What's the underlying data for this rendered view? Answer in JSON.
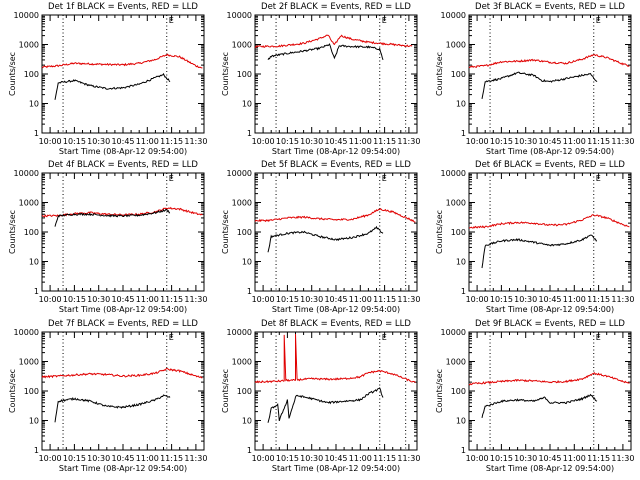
{
  "chart_data": [
    {
      "type": "line",
      "title": "Det 1f BLACK = Events, RED = LLD",
      "xlabel": "Start Time (08-Apr-12 09:54:00)",
      "ylabel": "Counts/sec",
      "xtick_labels": [
        "10:00",
        "10:15",
        "10:30",
        "10:45",
        "11:00",
        "11:15",
        "11:30"
      ],
      "ytick_labels": [
        "1",
        "10",
        "100",
        "1000",
        "10000"
      ],
      "ylim": [
        1,
        10000
      ],
      "yscale": "log",
      "time_range": [
        "09:55",
        "11:35"
      ],
      "markers": [
        {
          "time": "10:08",
          "label": ""
        },
        {
          "time": "11:12",
          "label": "E"
        }
      ],
      "series": [
        {
          "name": "RED = LLD",
          "color": "#e00000",
          "x": [
            "09:55",
            "10:05",
            "10:15",
            "10:25",
            "10:35",
            "10:45",
            "10:55",
            "11:05",
            "11:12",
            "11:20",
            "11:30",
            "11:34"
          ],
          "values": [
            170,
            190,
            230,
            220,
            210,
            205,
            230,
            310,
            450,
            380,
            190,
            160
          ]
        },
        {
          "name": "BLACK = Events",
          "color": "#000000",
          "x": [
            "10:03",
            "10:05",
            "10:15",
            "10:25",
            "10:35",
            "10:45",
            "10:55",
            "11:05",
            "11:10",
            "11:14"
          ],
          "values": [
            13,
            50,
            60,
            40,
            32,
            34,
            45,
            75,
            95,
            55
          ]
        }
      ]
    },
    {
      "type": "line",
      "title": "Det 2f BLACK = Events, RED = LLD",
      "xlabel": "Start Time (08-Apr-12 09:54:00)",
      "ylabel": "Counts/sec",
      "xtick_labels": [
        "10:00",
        "10:15",
        "10:30",
        "10:45",
        "11:00",
        "11:15",
        "11:30"
      ],
      "ytick_labels": [
        "1",
        "10",
        "100",
        "1000",
        "10000"
      ],
      "ylim": [
        1,
        10000
      ],
      "yscale": "log",
      "time_range": [
        "09:55",
        "11:35"
      ],
      "markers": [
        {
          "time": "10:08",
          "label": ""
        },
        {
          "time": "11:12",
          "label": "E"
        },
        {
          "time": "11:28",
          "label": ""
        }
      ],
      "series": [
        {
          "name": "RED = LLD",
          "color": "#e00000",
          "x": [
            "09:55",
            "10:10",
            "10:25",
            "10:35",
            "10:40",
            "10:44",
            "10:48",
            "10:55",
            "11:05",
            "11:20",
            "11:32"
          ],
          "values": [
            850,
            880,
            1100,
            1600,
            2100,
            950,
            2000,
            1500,
            1200,
            1000,
            870
          ]
        },
        {
          "name": "BLACK = Events",
          "color": "#000000",
          "x": [
            "10:03",
            "10:05",
            "10:15",
            "10:25",
            "10:35",
            "10:41",
            "10:44",
            "10:47",
            "10:55",
            "11:05",
            "11:12",
            "11:14"
          ],
          "values": [
            300,
            400,
            500,
            600,
            750,
            1000,
            330,
            900,
            850,
            820,
            700,
            300
          ]
        }
      ]
    },
    {
      "type": "line",
      "title": "Det 3f BLACK = Events, RED = LLD",
      "xlabel": "Start Time (08-Apr-12 09:54:00)",
      "ylabel": "Counts/sec",
      "xtick_labels": [
        "10:00",
        "10:15",
        "10:30",
        "10:45",
        "11:00",
        "11:15",
        "11:30"
      ],
      "ytick_labels": [
        "1",
        "10",
        "100",
        "1000",
        "10000"
      ],
      "ylim": [
        1,
        10000
      ],
      "yscale": "log",
      "time_range": [
        "09:55",
        "11:35"
      ],
      "markers": [
        {
          "time": "10:08",
          "label": ""
        },
        {
          "time": "11:12",
          "label": "E"
        }
      ],
      "series": [
        {
          "name": "RED = LLD",
          "color": "#e00000",
          "x": [
            "09:55",
            "10:05",
            "10:15",
            "10:25",
            "10:35",
            "10:45",
            "10:55",
            "11:05",
            "11:12",
            "11:20",
            "11:30",
            "11:34"
          ],
          "values": [
            170,
            190,
            260,
            270,
            300,
            250,
            230,
            320,
            450,
            360,
            220,
            190
          ]
        },
        {
          "name": "BLACK = Events",
          "color": "#000000",
          "x": [
            "10:03",
            "10:05",
            "10:15",
            "10:25",
            "10:35",
            "10:40",
            "10:45",
            "10:55",
            "11:05",
            "11:10",
            "11:14"
          ],
          "values": [
            15,
            55,
            70,
            110,
            90,
            60,
            55,
            70,
            90,
            100,
            55
          ]
        }
      ]
    },
    {
      "type": "line",
      "title": "Det 4f BLACK = Events, RED = LLD",
      "xlabel": "Start Time (08-Apr-12 09:54:00)",
      "ylabel": "Counts/sec",
      "xtick_labels": [
        "10:00",
        "10:15",
        "10:30",
        "10:45",
        "11:00",
        "11:15",
        "11:30"
      ],
      "ytick_labels": [
        "1",
        "10",
        "100",
        "1000",
        "10000"
      ],
      "ylim": [
        1,
        10000
      ],
      "yscale": "log",
      "time_range": [
        "09:55",
        "11:35"
      ],
      "markers": [
        {
          "time": "10:08",
          "label": ""
        },
        {
          "time": "11:12",
          "label": "E"
        }
      ],
      "series": [
        {
          "name": "RED = LLD",
          "color": "#e00000",
          "x": [
            "09:55",
            "10:05",
            "10:15",
            "10:25",
            "10:35",
            "10:45",
            "10:55",
            "11:05",
            "11:12",
            "11:20",
            "11:30",
            "11:34"
          ],
          "values": [
            350,
            360,
            420,
            450,
            400,
            380,
            400,
            480,
            650,
            600,
            420,
            380
          ]
        },
        {
          "name": "BLACK = Events",
          "color": "#000000",
          "x": [
            "10:03",
            "10:05",
            "10:15",
            "10:25",
            "10:35",
            "10:45",
            "10:55",
            "11:05",
            "11:12",
            "11:14"
          ],
          "values": [
            150,
            350,
            400,
            400,
            360,
            350,
            370,
            450,
            560,
            450
          ]
        }
      ]
    },
    {
      "type": "line",
      "title": "Det 5f BLACK = Events, RED = LLD",
      "xlabel": "Start Time (08-Apr-12 09:54:00)",
      "ylabel": "Counts/sec",
      "xtick_labels": [
        "10:00",
        "10:15",
        "10:30",
        "10:45",
        "11:00",
        "11:15",
        "11:30"
      ],
      "ytick_labels": [
        "1",
        "10",
        "100",
        "1000",
        "10000"
      ],
      "ylim": [
        1,
        10000
      ],
      "yscale": "log",
      "time_range": [
        "09:55",
        "11:35"
      ],
      "markers": [
        {
          "time": "10:08",
          "label": ""
        },
        {
          "time": "11:12",
          "label": "E"
        },
        {
          "time": "11:28",
          "label": ""
        }
      ],
      "series": [
        {
          "name": "RED = LLD",
          "color": "#e00000",
          "x": [
            "09:55",
            "10:05",
            "10:15",
            "10:25",
            "10:35",
            "10:45",
            "10:55",
            "11:05",
            "11:12",
            "11:20",
            "11:30",
            "11:34"
          ],
          "values": [
            240,
            250,
            300,
            320,
            280,
            260,
            270,
            380,
            600,
            480,
            280,
            220
          ]
        },
        {
          "name": "BLACK = Events",
          "color": "#000000",
          "x": [
            "10:03",
            "10:05",
            "10:15",
            "10:25",
            "10:35",
            "10:45",
            "10:55",
            "11:05",
            "11:10",
            "11:14"
          ],
          "values": [
            20,
            70,
            90,
            100,
            70,
            55,
            65,
            90,
            140,
            90
          ]
        }
      ]
    },
    {
      "type": "line",
      "title": "Det 6f BLACK = Events, RED = LLD",
      "xlabel": "Start Time (08-Apr-12 09:54:00)",
      "ylabel": "Counts/sec",
      "xtick_labels": [
        "10:00",
        "10:15",
        "10:30",
        "10:45",
        "11:00",
        "11:15",
        "11:30"
      ],
      "ytick_labels": [
        "1",
        "10",
        "100",
        "1000",
        "10000"
      ],
      "ylim": [
        1,
        10000
      ],
      "yscale": "log",
      "time_range": [
        "09:55",
        "11:35"
      ],
      "markers": [
        {
          "time": "10:08",
          "label": ""
        },
        {
          "time": "11:12",
          "label": "E"
        }
      ],
      "series": [
        {
          "name": "RED = LLD",
          "color": "#e00000",
          "x": [
            "09:55",
            "10:05",
            "10:15",
            "10:25",
            "10:35",
            "10:45",
            "10:55",
            "11:05",
            "11:12",
            "11:20",
            "11:30",
            "11:34"
          ],
          "values": [
            140,
            150,
            190,
            210,
            200,
            170,
            180,
            260,
            380,
            300,
            180,
            150
          ]
        },
        {
          "name": "BLACK = Events",
          "color": "#000000",
          "x": [
            "10:03",
            "10:05",
            "10:15",
            "10:25",
            "10:35",
            "10:45",
            "10:55",
            "11:05",
            "11:10",
            "11:14"
          ],
          "values": [
            6,
            35,
            50,
            55,
            45,
            35,
            40,
            55,
            80,
            50
          ]
        }
      ]
    },
    {
      "type": "line",
      "title": "Det 7f BLACK = Events, RED = LLD",
      "xlabel": "Start Time (08-Apr-12 09:54:00)",
      "ylabel": "Counts/sec",
      "xtick_labels": [
        "10:00",
        "10:15",
        "10:30",
        "10:45",
        "11:00",
        "11:15",
        "11:30"
      ],
      "ytick_labels": [
        "1",
        "10",
        "100",
        "1000",
        "10000"
      ],
      "ylim": [
        1,
        10000
      ],
      "yscale": "log",
      "time_range": [
        "09:55",
        "11:35"
      ],
      "markers": [
        {
          "time": "10:08",
          "label": ""
        },
        {
          "time": "11:12",
          "label": "E"
        }
      ],
      "series": [
        {
          "name": "RED = LLD",
          "color": "#e00000",
          "x": [
            "09:55",
            "10:05",
            "10:15",
            "10:25",
            "10:35",
            "10:45",
            "10:55",
            "11:05",
            "11:12",
            "11:20",
            "11:30",
            "11:34"
          ],
          "values": [
            300,
            320,
            350,
            380,
            360,
            320,
            340,
            400,
            550,
            480,
            320,
            280
          ]
        },
        {
          "name": "BLACK = Events",
          "color": "#000000",
          "x": [
            "10:03",
            "10:05",
            "10:15",
            "10:25",
            "10:35",
            "10:45",
            "10:55",
            "11:05",
            "11:10",
            "11:14"
          ],
          "values": [
            9,
            45,
            55,
            45,
            30,
            28,
            35,
            50,
            70,
            60
          ]
        }
      ]
    },
    {
      "type": "line",
      "title": "Det 8f BLACK = Events, RED = LLD",
      "xlabel": "Start Time (08-Apr-12 09:54:00)",
      "ylabel": "Counts/sec",
      "xtick_labels": [
        "10:00",
        "10:15",
        "10:30",
        "10:45",
        "11:00",
        "11:15",
        "11:30"
      ],
      "ytick_labels": [
        "1",
        "10",
        "100",
        "1000",
        "10000"
      ],
      "ylim": [
        1,
        10000
      ],
      "yscale": "log",
      "time_range": [
        "09:55",
        "11:35"
      ],
      "markers": [
        {
          "time": "10:08",
          "label": ""
        },
        {
          "time": "11:12",
          "label": "E"
        },
        {
          "time": "11:28",
          "label": ""
        }
      ],
      "series": [
        {
          "name": "RED = LLD",
          "color": "#e00000",
          "x": [
            "09:55",
            "10:05",
            "10:13",
            "10:13",
            "10:14",
            "10:20",
            "10:20",
            "10:21",
            "10:30",
            "10:40",
            "10:50",
            "11:00",
            "11:05",
            "11:12",
            "11:20",
            "11:30",
            "11:34"
          ],
          "values": [
            200,
            210,
            220,
            8000,
            230,
            230,
            8000,
            240,
            260,
            250,
            260,
            300,
            420,
            480,
            380,
            230,
            190
          ]
        },
        {
          "name": "BLACK = Events",
          "color": "#000000",
          "x": [
            "10:03",
            "10:05",
            "10:09",
            "10:10",
            "10:15",
            "10:16",
            "10:20",
            "10:21",
            "10:30",
            "10:40",
            "10:50",
            "11:00",
            "11:05",
            "11:12",
            "11:14"
          ],
          "values": [
            8,
            25,
            35,
            10,
            50,
            12,
            60,
            70,
            55,
            40,
            45,
            50,
            80,
            120,
            60
          ]
        }
      ]
    },
    {
      "type": "line",
      "title": "Det 9f BLACK = Events, RED = LLD",
      "xlabel": "Start Time (08-Apr-12 09:54:00)",
      "ylabel": "Counts/sec",
      "xtick_labels": [
        "10:00",
        "10:15",
        "10:30",
        "10:45",
        "11:00",
        "11:15",
        "11:30"
      ],
      "ytick_labels": [
        "1",
        "10",
        "100",
        "1000",
        "10000"
      ],
      "ylim": [
        1,
        10000
      ],
      "yscale": "log",
      "time_range": [
        "09:55",
        "11:35"
      ],
      "markers": [
        {
          "time": "10:08",
          "label": ""
        },
        {
          "time": "11:12",
          "label": "E"
        }
      ],
      "series": [
        {
          "name": "RED = LLD",
          "color": "#e00000",
          "x": [
            "09:55",
            "10:05",
            "10:15",
            "10:25",
            "10:35",
            "10:45",
            "10:55",
            "11:05",
            "11:12",
            "11:20",
            "11:30",
            "11:34"
          ],
          "values": [
            170,
            190,
            210,
            230,
            220,
            200,
            210,
            260,
            400,
            320,
            210,
            180
          ]
        },
        {
          "name": "BLACK = Events",
          "color": "#000000",
          "x": [
            "10:03",
            "10:05",
            "10:15",
            "10:25",
            "10:35",
            "10:42",
            "10:45",
            "10:55",
            "11:05",
            "11:10",
            "11:14"
          ],
          "values": [
            13,
            30,
            45,
            50,
            45,
            60,
            40,
            40,
            55,
            75,
            45
          ]
        }
      ]
    }
  ]
}
